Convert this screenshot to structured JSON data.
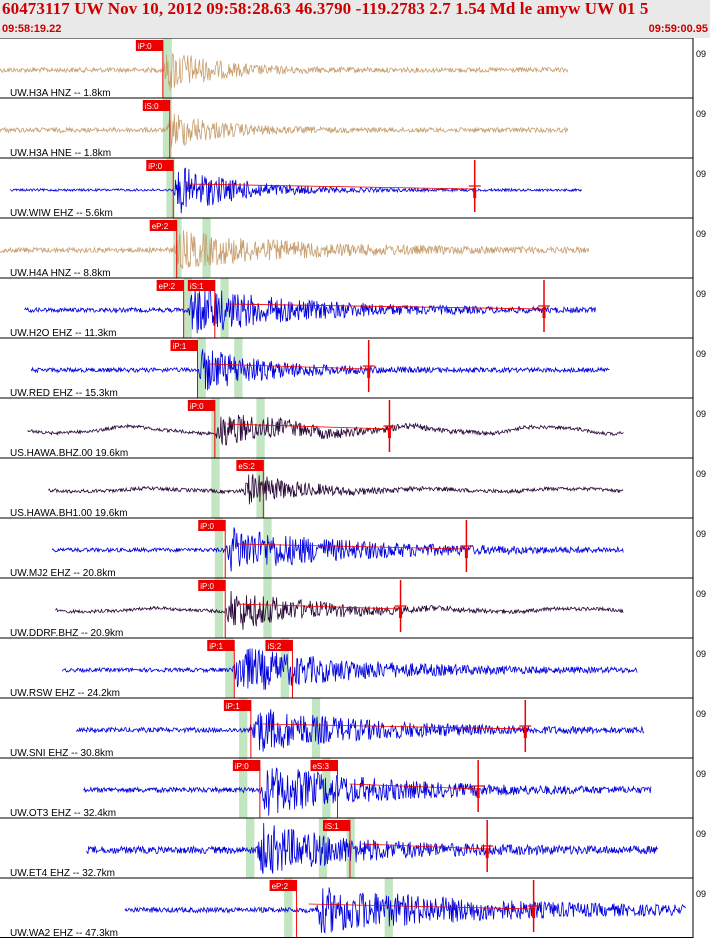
{
  "header": {
    "title": "60473117 UW Nov 10, 2012 09:58:28.63   46.3790 -119.2783  2.7 1.54 Md le amyw UW 01   5",
    "start_time": "09:58:19.22",
    "end_time": "09:59:00.95"
  },
  "chart_data": {
    "type": "line",
    "title": "60473117 UW Nov 10, 2012 09:58:28.63   46.3790 -119.2783  2.7 1.54 Md le amyw UW 01   5",
    "x_start": "09:58:19.22",
    "x_end": "09:59:00.95",
    "minute_tick_label": "09",
    "colors": {
      "pick": "#ee0000",
      "pick_text": "#ffffff",
      "window": "#c2e6c2",
      "grid": "#000000"
    },
    "traces": [
      {
        "label": "UW.H3A HNZ -- 1.8km",
        "color": "#c8a070",
        "start": 0.0,
        "end": 0.82,
        "onset": 0.235,
        "coda": 0.12,
        "amp": 0.9,
        "noise": 0.06,
        "picks": [
          {
            "label": "iP:0",
            "pos": 0.235
          }
        ],
        "windows": [
          0.235,
          0.248
        ],
        "tail_marks": []
      },
      {
        "label": "UW.H3A HNE -- 1.8km",
        "color": "#c8a070",
        "start": 0.0,
        "end": 0.82,
        "onset": 0.24,
        "coda": 0.12,
        "amp": 0.75,
        "noise": 0.06,
        "picks": [
          {
            "label": "iS:0",
            "pos": 0.245
          }
        ],
        "windows": [
          0.235,
          0.248
        ],
        "tail_marks": []
      },
      {
        "label": "UW.WIW EHZ -- 5.6km",
        "color": "#0000dd",
        "start": 0.015,
        "end": 0.84,
        "onset": 0.25,
        "coda": 0.16,
        "amp": 1.0,
        "noise": 0.0,
        "picks": [
          {
            "label": "iP:0",
            "pos": 0.25
          }
        ],
        "windows": [
          0.24,
          0.252
        ],
        "tail_marks": [
          0.685
        ]
      },
      {
        "label": "UW.H4A HNZ -- 8.8km",
        "color": "#c8a070",
        "start": 0.0,
        "end": 0.85,
        "onset": 0.25,
        "coda": 0.3,
        "amp": 0.75,
        "noise": 0.07,
        "picks": [
          {
            "label": "eP:2",
            "pos": 0.255
          }
        ],
        "windows": [
          0.25,
          0.262,
          0.292,
          0.304
        ],
        "tail_marks": []
      },
      {
        "label": "UW.H2O EHZ -- 11.3km",
        "color": "#0000dd",
        "start": 0.035,
        "end": 0.86,
        "onset": 0.27,
        "coda": 0.28,
        "amp": 1.0,
        "noise": 0.05,
        "picks": [
          {
            "label": "eP:2",
            "pos": 0.265
          },
          {
            "label": "iS:1",
            "pos": 0.31
          }
        ],
        "windows": [
          0.265,
          0.277,
          0.318,
          0.33
        ],
        "tail_marks": [
          0.785
        ]
      },
      {
        "label": "UW.RED EHZ -- 15.3km",
        "color": "#0000dd",
        "start": 0.045,
        "end": 0.88,
        "onset": 0.285,
        "coda": 0.17,
        "amp": 0.9,
        "noise": 0.05,
        "picks": [
          {
            "label": "iP:1",
            "pos": 0.285
          }
        ],
        "windows": [
          0.285,
          0.297,
          0.338,
          0.35
        ],
        "tail_marks": [
          0.532
        ]
      },
      {
        "label": "US.HAWA.BHZ.00 19.6km",
        "color": "#2a0a3a",
        "start": 0.04,
        "end": 0.9,
        "onset": 0.31,
        "coda": 0.2,
        "amp": 0.7,
        "noise": 0.02,
        "wave": 0.12,
        "picks": [
          {
            "label": "iP:0",
            "pos": 0.31
          }
        ],
        "windows": [
          0.305,
          0.317,
          0.37,
          0.382
        ],
        "tail_marks": [
          0.562
        ]
      },
      {
        "label": "US.HAWA.BH1.00 19.6km",
        "color": "#2a0a3a",
        "start": 0.07,
        "end": 0.9,
        "onset": 0.35,
        "coda": 0.14,
        "amp": 0.65,
        "noise": 0.03,
        "wave": 0.05,
        "picks": [
          {
            "label": "eS:2",
            "pos": 0.38
          }
        ],
        "windows": [
          0.305,
          0.317,
          0.37,
          0.382
        ],
        "tail_marks": []
      },
      {
        "label": "UW.MJ2 EHZ -- 20.8km",
        "color": "#0000dd",
        "start": 0.075,
        "end": 0.9,
        "onset": 0.325,
        "coda": 0.32,
        "amp": 0.9,
        "noise": 0.04,
        "picks": [
          {
            "label": "iP:0",
            "pos": 0.325
          }
        ],
        "windows": [
          0.31,
          0.322,
          0.38,
          0.392
        ],
        "tail_marks": [
          0.673
        ]
      },
      {
        "label": "UW.DDRF.BHZ -- 20.9km",
        "color": "#2a0a3a",
        "start": 0.08,
        "end": 0.9,
        "onset": 0.325,
        "coda": 0.2,
        "amp": 0.85,
        "noise": 0.02,
        "wave": 0.06,
        "picks": [
          {
            "label": "iP:0",
            "pos": 0.325
          }
        ],
        "windows": [
          0.31,
          0.322,
          0.38,
          0.392
        ],
        "tail_marks": [
          0.578
        ]
      },
      {
        "label": "UW.RSW EHZ -- 24.2km",
        "color": "#0000dd",
        "start": 0.09,
        "end": 0.92,
        "onset": 0.335,
        "coda": 0.3,
        "amp": 0.95,
        "noise": 0.04,
        "picks": [
          {
            "label": "iP:1",
            "pos": 0.338
          },
          {
            "label": "iS:2",
            "pos": 0.422
          }
        ],
        "windows": [
          0.325,
          0.337,
          0.405,
          0.417
        ],
        "tail_marks": []
      },
      {
        "label": "UW.SNI EHZ -- 30.8km",
        "color": "#0000dd",
        "start": 0.11,
        "end": 0.93,
        "onset": 0.36,
        "coda": 0.3,
        "amp": 0.9,
        "noise": 0.06,
        "picks": [
          {
            "label": "iP:1",
            "pos": 0.362
          }
        ],
        "windows": [
          0.345,
          0.357,
          0.45,
          0.462
        ],
        "tail_marks": [
          0.758
        ]
      },
      {
        "label": "UW.OT3 EHZ -- 32.4km",
        "color": "#0000dd",
        "start": 0.12,
        "end": 0.94,
        "onset": 0.375,
        "coda": 0.3,
        "amp": 1.0,
        "noise": 0.07,
        "picks": [
          {
            "label": "iP:0",
            "pos": 0.375
          },
          {
            "label": "eS:3",
            "pos": 0.487
          }
        ],
        "windows": [
          0.345,
          0.357,
          0.465,
          0.477
        ],
        "tail_marks": [
          0.69
        ]
      },
      {
        "label": "UW.ET4 EHZ -- 32.7km",
        "color": "#0000dd",
        "start": 0.125,
        "end": 0.95,
        "onset": 0.37,
        "coda": 0.25,
        "amp": 1.0,
        "noise": 0.12,
        "picks": [
          {
            "label": "iS:1",
            "pos": 0.505
          }
        ],
        "windows": [
          0.355,
          0.367,
          0.46,
          0.472,
          0.5,
          0.512
        ],
        "tail_marks": [
          0.703
        ]
      },
      {
        "label": "UW.WA2 EHZ -- 47.3km",
        "color": "#0000dd",
        "start": 0.18,
        "end": 0.99,
        "onset": 0.455,
        "coda": 0.45,
        "amp": 0.9,
        "noise": 0.07,
        "picks": [
          {
            "label": "eP:2",
            "pos": 0.428
          }
        ],
        "windows": [
          0.41,
          0.422,
          0.555,
          0.567
        ],
        "tail_marks": [
          0.77
        ]
      }
    ]
  }
}
